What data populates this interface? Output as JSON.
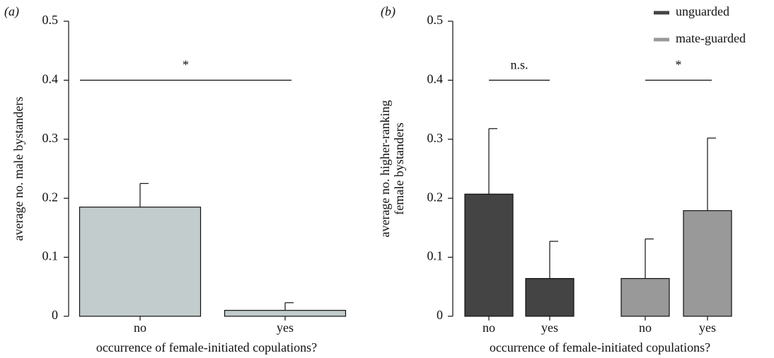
{
  "chart_data": [
    {
      "type": "bar",
      "panel": "(a)",
      "ylabel": [
        "average no. male bystanders"
      ],
      "xlabel": "occurrence of female-initiated copulations?",
      "categories": [
        "no",
        "yes"
      ],
      "series": [
        {
          "color": "#c2cccc",
          "values": [
            0.185,
            0.01
          ],
          "errors": [
            0.04,
            0.013
          ]
        }
      ],
      "ylim": [
        0,
        0.5
      ],
      "yticks": [
        0,
        0.1,
        0.2,
        0.3,
        0.4,
        0.5
      ],
      "annotations": [
        {
          "text": "*",
          "y": 0.4
        }
      ]
    },
    {
      "type": "bar",
      "panel": "(b)",
      "ylabel": [
        "average no. higher-ranking",
        "female bystanders"
      ],
      "xlabel": "occurrence of female-initiated copulations?",
      "categories": [
        "no",
        "yes",
        "no",
        "yes"
      ],
      "series": [
        {
          "name": "unguarded",
          "color": "#444444",
          "values": [
            0.207,
            0.064,
            null,
            null
          ],
          "errors": [
            0.111,
            0.063,
            null,
            null
          ]
        },
        {
          "name": "mate-guarded",
          "color": "#999999",
          "values": [
            null,
            null,
            0.064,
            0.179
          ],
          "errors": [
            null,
            null,
            0.067,
            0.123
          ]
        }
      ],
      "ylim": [
        0,
        0.5
      ],
      "yticks": [
        0,
        0.1,
        0.2,
        0.3,
        0.4,
        0.5
      ],
      "annotations": [
        {
          "text": "n.s.",
          "y": 0.4
        },
        {
          "text": "*",
          "y": 0.4
        }
      ]
    }
  ]
}
